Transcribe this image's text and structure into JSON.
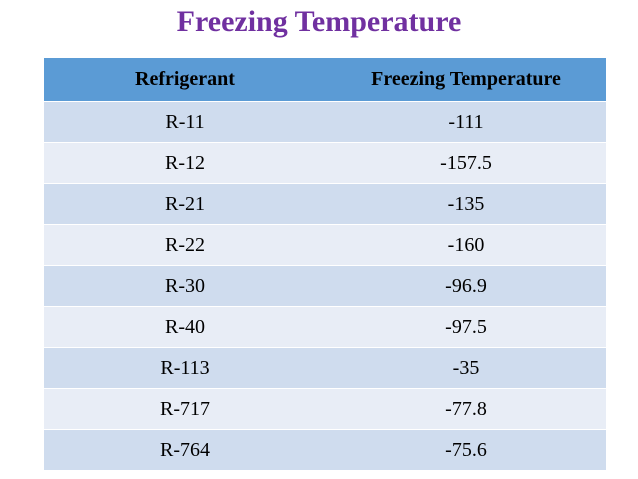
{
  "title": "Freezing Temperature",
  "table": {
    "headers": [
      "Refrigerant",
      "Freezing Temperature"
    ],
    "rows": [
      [
        "R-11",
        "-111"
      ],
      [
        "R-12",
        "-157.5"
      ],
      [
        "R-21",
        "-135"
      ],
      [
        "R-22",
        "-160"
      ],
      [
        "R-30",
        "-96.9"
      ],
      [
        "R-40",
        "-97.5"
      ],
      [
        "R-113",
        "-35"
      ],
      [
        "R-717",
        "-77.8"
      ],
      [
        "R-764",
        "-75.6"
      ]
    ]
  },
  "colors": {
    "title": "#7030a0",
    "header_bg": "#5b9bd5",
    "row_odd_bg": "#cfdcee",
    "row_even_bg": "#e8edf6"
  }
}
